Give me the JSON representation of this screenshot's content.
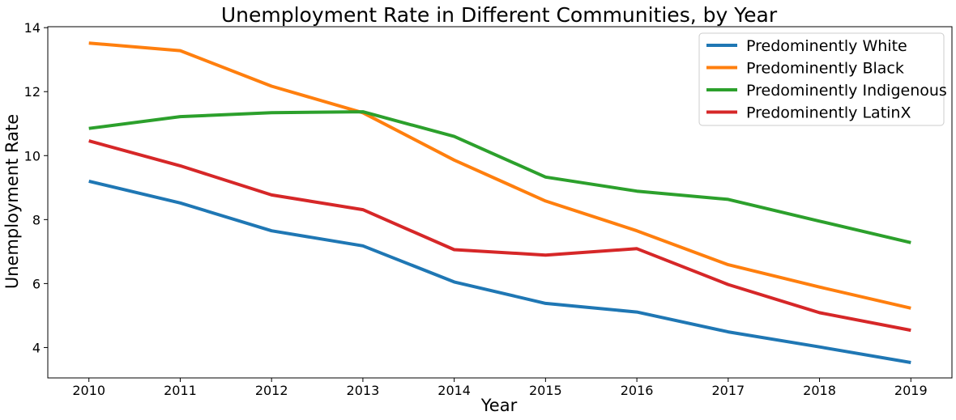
{
  "chart_data": {
    "type": "line",
    "title": "Unemployment Rate in Different Communities, by Year",
    "xlabel": "Year",
    "ylabel": "Unemployment Rate",
    "x": [
      2010,
      2011,
      2012,
      2013,
      2014,
      2015,
      2016,
      2017,
      2018,
      2019
    ],
    "xlim": [
      2009.55,
      2019.45
    ],
    "ylim": [
      3.05,
      14.03
    ],
    "yticks": [
      4,
      6,
      8,
      10,
      12,
      14
    ],
    "grid": false,
    "legend_position": "top-right",
    "series": [
      {
        "name": "Predominently White",
        "color": "#1f77b4",
        "values": [
          9.2,
          8.52,
          7.65,
          7.18,
          6.05,
          5.38,
          5.11,
          4.49,
          4.02,
          3.53
        ]
      },
      {
        "name": "Predominently Black",
        "color": "#ff7f0e",
        "values": [
          13.52,
          13.28,
          12.17,
          11.34,
          9.86,
          8.58,
          7.65,
          6.59,
          5.89,
          5.23
        ]
      },
      {
        "name": "Predominently Indigenous",
        "color": "#2ca02c",
        "values": [
          10.85,
          11.22,
          11.34,
          11.37,
          10.6,
          9.33,
          8.89,
          8.63,
          7.95,
          7.28
        ]
      },
      {
        "name": "Predominently LatinX",
        "color": "#d62728",
        "values": [
          10.46,
          9.68,
          8.77,
          8.31,
          7.06,
          6.89,
          7.09,
          5.97,
          5.09,
          4.54
        ]
      }
    ]
  }
}
